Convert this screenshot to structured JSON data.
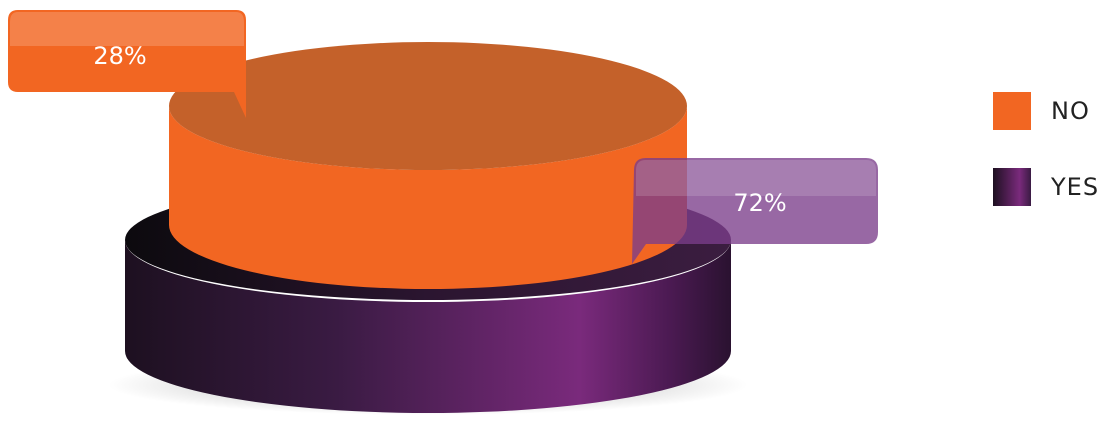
{
  "chart_data": {
    "type": "pie",
    "categories": [
      "NO",
      "YES"
    ],
    "values": [
      28,
      72
    ],
    "data_labels": [
      "28%",
      "72%"
    ],
    "colors": {
      "NO": "#f26622",
      "YES": "#5a2163"
    },
    "legend": {
      "position": "right",
      "entries": [
        "NO",
        "YES"
      ]
    },
    "title": ""
  }
}
